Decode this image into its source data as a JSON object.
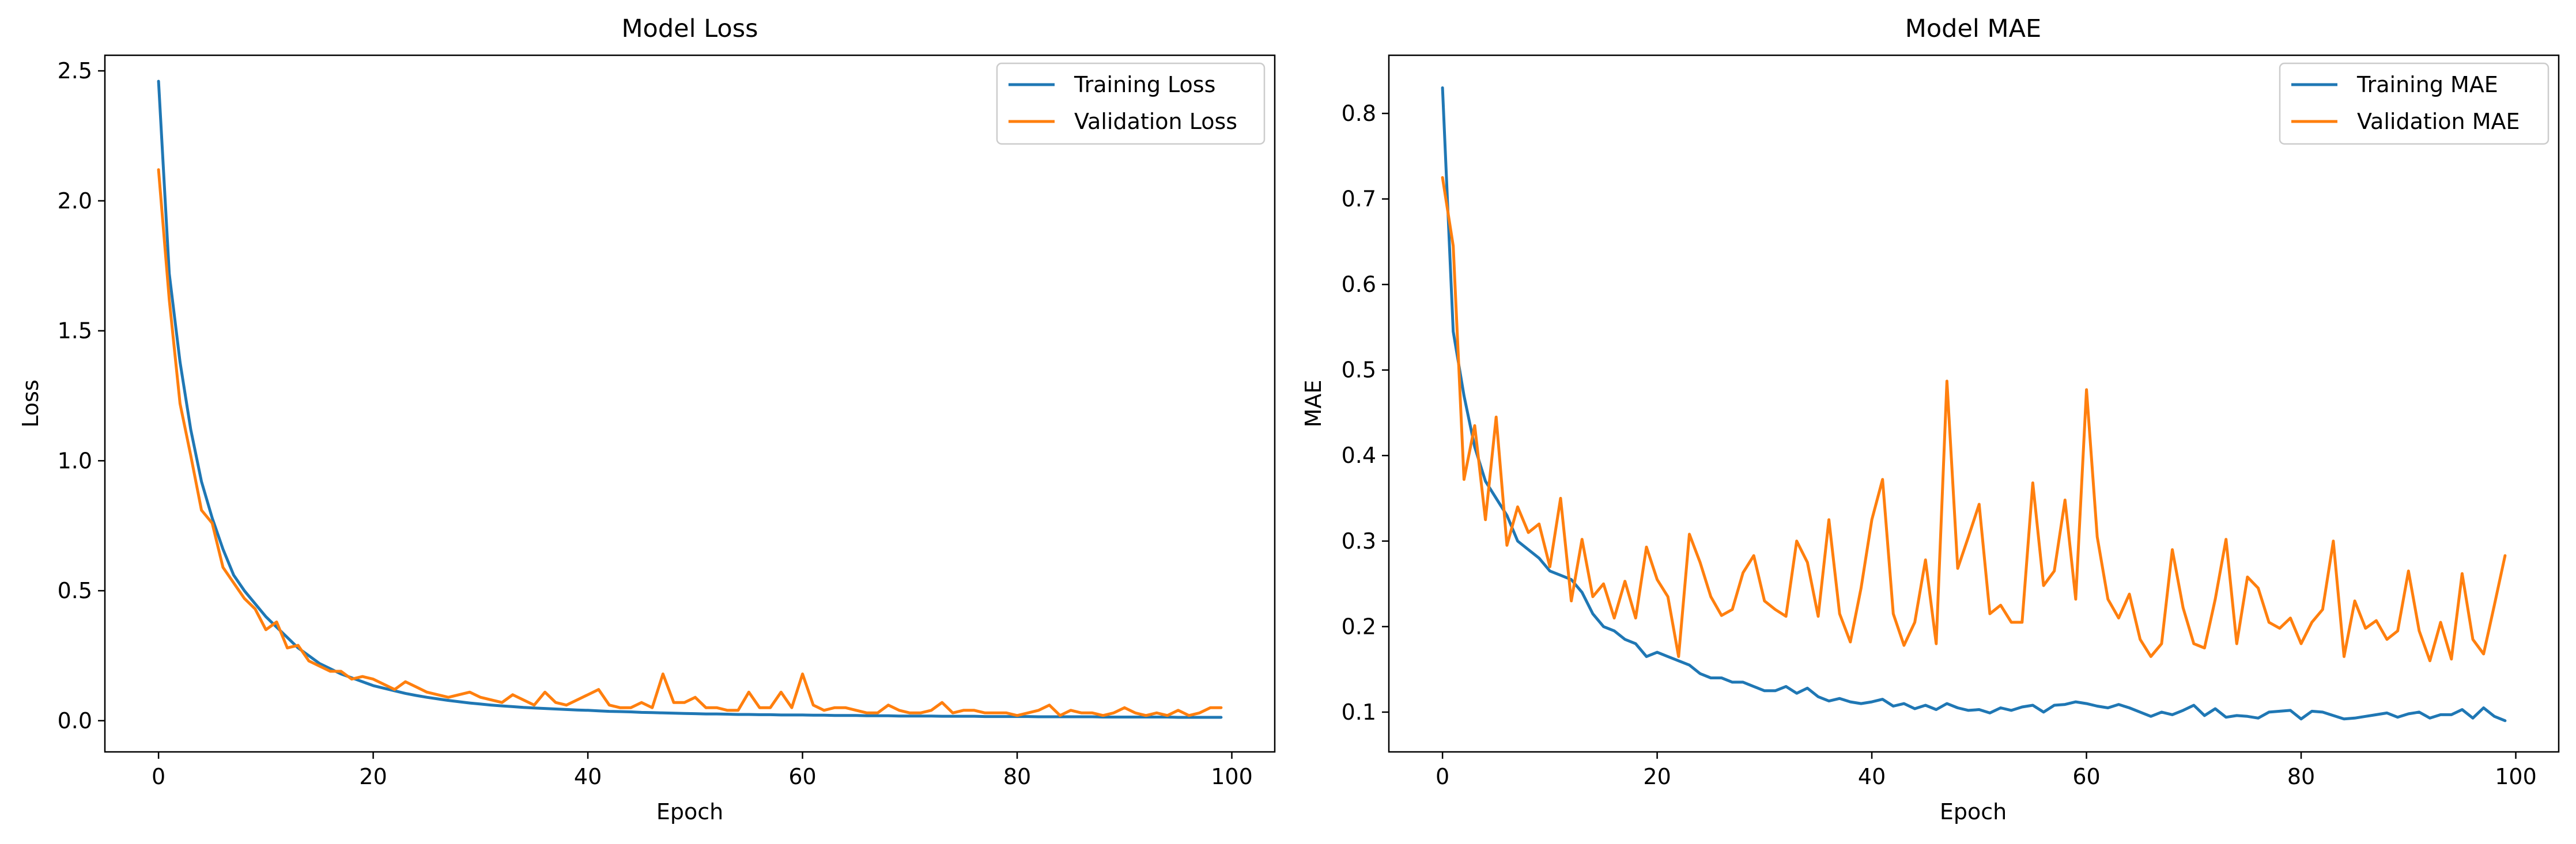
{
  "chart_data": [
    {
      "type": "line",
      "title": "Model Loss",
      "xlabel": "Epoch",
      "ylabel": "Loss",
      "xlim": [
        -5,
        104
      ],
      "ylim": [
        -0.12,
        2.56
      ],
      "xticks": [
        0,
        20,
        40,
        60,
        80,
        100
      ],
      "yticks": [
        0.0,
        0.5,
        1.0,
        1.5,
        2.0,
        2.5
      ],
      "ytick_labels": [
        "0.0",
        "0.5",
        "1.0",
        "1.5",
        "2.0",
        "2.5"
      ],
      "grid": false,
      "legend": "top-right",
      "series": [
        {
          "name": "Training Loss",
          "color": "#1f77b4",
          "values": [
            2.46,
            1.72,
            1.38,
            1.12,
            0.92,
            0.78,
            0.66,
            0.56,
            0.5,
            0.45,
            0.4,
            0.36,
            0.32,
            0.28,
            0.25,
            0.22,
            0.2,
            0.18,
            0.165,
            0.15,
            0.135,
            0.125,
            0.115,
            0.105,
            0.097,
            0.09,
            0.084,
            0.078,
            0.073,
            0.068,
            0.064,
            0.06,
            0.057,
            0.054,
            0.051,
            0.049,
            0.047,
            0.045,
            0.043,
            0.041,
            0.04,
            0.038,
            0.036,
            0.035,
            0.034,
            0.032,
            0.031,
            0.03,
            0.029,
            0.028,
            0.027,
            0.026,
            0.026,
            0.025,
            0.024,
            0.024,
            0.023,
            0.023,
            0.022,
            0.022,
            0.022,
            0.021,
            0.021,
            0.02,
            0.02,
            0.02,
            0.019,
            0.019,
            0.019,
            0.018,
            0.018,
            0.018,
            0.018,
            0.017,
            0.017,
            0.017,
            0.017,
            0.016,
            0.016,
            0.016,
            0.016,
            0.016,
            0.015,
            0.015,
            0.015,
            0.015,
            0.015,
            0.015,
            0.014,
            0.014,
            0.014,
            0.014,
            0.014,
            0.014,
            0.014,
            0.013,
            0.013,
            0.013,
            0.013,
            0.013
          ]
        },
        {
          "name": "Validation Loss",
          "color": "#ff7f0e",
          "values": [
            2.12,
            1.62,
            1.22,
            1.02,
            0.81,
            0.76,
            0.59,
            0.53,
            0.47,
            0.43,
            0.35,
            0.38,
            0.28,
            0.29,
            0.23,
            0.21,
            0.19,
            0.19,
            0.16,
            0.17,
            0.16,
            0.14,
            0.12,
            0.15,
            0.13,
            0.11,
            0.1,
            0.09,
            0.1,
            0.11,
            0.09,
            0.08,
            0.07,
            0.1,
            0.08,
            0.06,
            0.11,
            0.07,
            0.06,
            0.08,
            0.1,
            0.12,
            0.06,
            0.05,
            0.05,
            0.07,
            0.05,
            0.18,
            0.07,
            0.07,
            0.09,
            0.05,
            0.05,
            0.04,
            0.04,
            0.11,
            0.05,
            0.05,
            0.11,
            0.05,
            0.18,
            0.06,
            0.04,
            0.05,
            0.05,
            0.04,
            0.03,
            0.03,
            0.06,
            0.04,
            0.03,
            0.03,
            0.04,
            0.07,
            0.03,
            0.04,
            0.04,
            0.03,
            0.03,
            0.03,
            0.02,
            0.03,
            0.04,
            0.06,
            0.02,
            0.04,
            0.03,
            0.03,
            0.02,
            0.03,
            0.05,
            0.03,
            0.02,
            0.03,
            0.02,
            0.04,
            0.02,
            0.03,
            0.05,
            0.05
          ]
        }
      ]
    },
    {
      "type": "line",
      "title": "Model MAE",
      "xlabel": "Epoch",
      "ylabel": "MAE",
      "xlim": [
        -5,
        104
      ],
      "ylim": [
        0.0535,
        0.868
      ],
      "xticks": [
        0,
        20,
        40,
        60,
        80,
        100
      ],
      "yticks": [
        0.1,
        0.2,
        0.3,
        0.4,
        0.5,
        0.6,
        0.7,
        0.8
      ],
      "ytick_labels": [
        "0.1",
        "0.2",
        "0.3",
        "0.4",
        "0.5",
        "0.6",
        "0.7",
        "0.8"
      ],
      "grid": false,
      "legend": "top-right",
      "series": [
        {
          "name": "Training MAE",
          "color": "#1f77b4",
          "values": [
            0.83,
            0.545,
            0.47,
            0.41,
            0.37,
            0.35,
            0.33,
            0.3,
            0.29,
            0.28,
            0.265,
            0.26,
            0.255,
            0.24,
            0.215,
            0.2,
            0.195,
            0.185,
            0.18,
            0.165,
            0.17,
            0.165,
            0.16,
            0.155,
            0.145,
            0.14,
            0.14,
            0.135,
            0.135,
            0.13,
            0.125,
            0.125,
            0.13,
            0.122,
            0.128,
            0.118,
            0.113,
            0.116,
            0.112,
            0.11,
            0.112,
            0.115,
            0.107,
            0.11,
            0.104,
            0.108,
            0.103,
            0.11,
            0.105,
            0.102,
            0.103,
            0.099,
            0.105,
            0.102,
            0.106,
            0.108,
            0.1,
            0.108,
            0.109,
            0.112,
            0.11,
            0.107,
            0.105,
            0.109,
            0.105,
            0.1,
            0.095,
            0.1,
            0.097,
            0.102,
            0.108,
            0.096,
            0.104,
            0.094,
            0.096,
            0.095,
            0.093,
            0.1,
            0.101,
            0.102,
            0.092,
            0.101,
            0.1,
            0.096,
            0.092,
            0.093,
            0.095,
            0.097,
            0.099,
            0.094,
            0.098,
            0.1,
            0.093,
            0.097,
            0.097,
            0.103,
            0.093,
            0.105,
            0.095,
            0.09
          ]
        },
        {
          "name": "Validation MAE",
          "color": "#ff7f0e",
          "values": [
            0.725,
            0.645,
            0.372,
            0.435,
            0.325,
            0.445,
            0.295,
            0.34,
            0.31,
            0.32,
            0.27,
            0.35,
            0.23,
            0.302,
            0.235,
            0.25,
            0.21,
            0.253,
            0.21,
            0.293,
            0.255,
            0.235,
            0.165,
            0.308,
            0.275,
            0.235,
            0.213,
            0.22,
            0.263,
            0.283,
            0.23,
            0.22,
            0.212,
            0.3,
            0.275,
            0.212,
            0.325,
            0.215,
            0.182,
            0.245,
            0.325,
            0.372,
            0.215,
            0.178,
            0.205,
            0.278,
            0.18,
            0.487,
            0.268,
            0.305,
            0.343,
            0.215,
            0.225,
            0.205,
            0.205,
            0.368,
            0.248,
            0.265,
            0.348,
            0.232,
            0.477,
            0.305,
            0.232,
            0.21,
            0.238,
            0.185,
            0.165,
            0.18,
            0.29,
            0.222,
            0.18,
            0.175,
            0.232,
            0.302,
            0.18,
            0.258,
            0.245,
            0.205,
            0.198,
            0.21,
            0.18,
            0.205,
            0.22,
            0.3,
            0.165,
            0.23,
            0.198,
            0.207,
            0.185,
            0.195,
            0.265,
            0.195,
            0.16,
            0.205,
            0.162,
            0.262,
            0.185,
            0.168,
            0.225,
            0.283
          ]
        }
      ]
    }
  ]
}
